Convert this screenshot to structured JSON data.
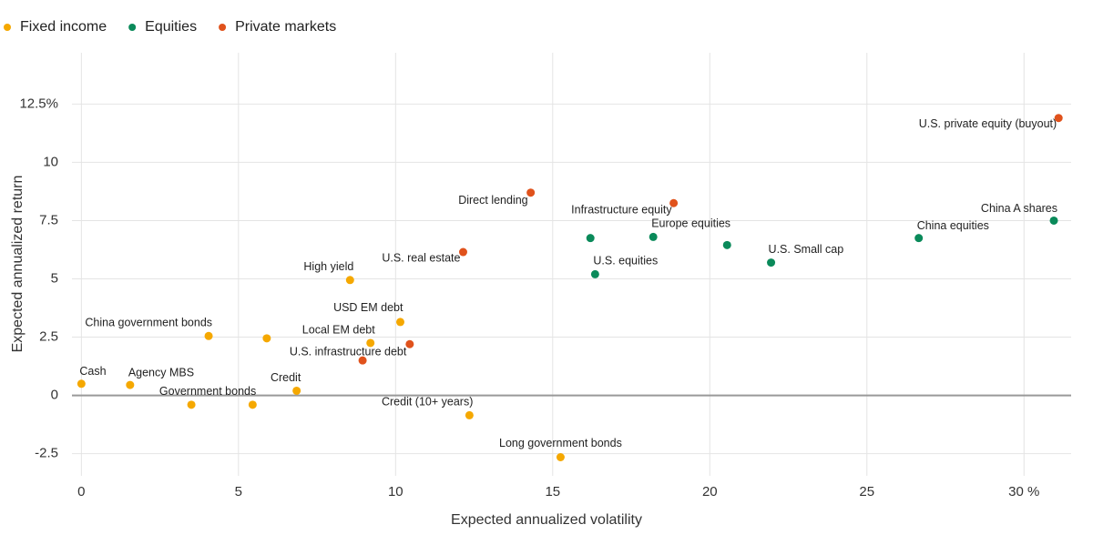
{
  "chart_data": {
    "type": "scatter",
    "x_label": "Expected annualized volatility",
    "y_label": "Expected annualized return",
    "xlim": [
      -0.3,
      31.5
    ],
    "ylim": [
      -3.45,
      14.7
    ],
    "xticks": [
      0,
      5,
      10,
      15,
      20,
      25,
      {
        "value": 30,
        "label": "30 %"
      }
    ],
    "yticks": [
      -2.5,
      0,
      2.5,
      5,
      7.5,
      10,
      {
        "value": 12.5,
        "label": "12.5%"
      }
    ],
    "grid": true,
    "legend": "top-left",
    "series": [
      {
        "name": "Fixed income",
        "color": "#f5a800",
        "x": [
          0,
          1.55,
          3.5,
          5.45,
          4.05,
          5.9,
          6.85,
          8.55,
          9.2,
          10.15,
          12.35,
          15.25
        ],
        "values": [
          0.5,
          0.45,
          -0.4,
          -0.4,
          2.55,
          2.45,
          0.2,
          4.95,
          2.25,
          3.15,
          -0.85,
          -2.65
        ],
        "labels": [
          "Cash",
          "Agency MBS",
          "Government bonds",
          null,
          "China government bonds",
          null,
          "Credit",
          "High yield",
          "Local EM debt",
          "USD EM debt",
          "Credit (10+ years)",
          "Long government bonds"
        ]
      },
      {
        "name": "Equities",
        "color": "#0a8a5a",
        "x": [
          16.2,
          16.35,
          18.2,
          20.55,
          21.95,
          26.65,
          30.95
        ],
        "values": [
          6.75,
          5.2,
          6.8,
          6.45,
          5.7,
          6.75,
          7.5
        ],
        "labels": [
          null,
          "U.S. equities",
          "Europe equities",
          null,
          "U.S. Small cap",
          "China equities",
          "China A shares"
        ]
      },
      {
        "name": "Private markets",
        "color": "#e0521c",
        "x": [
          8.95,
          10.45,
          12.15,
          14.3,
          18.85,
          31.1
        ],
        "values": [
          1.5,
          2.2,
          6.15,
          8.7,
          8.25,
          11.9
        ],
        "labels": [
          "U.S. infrastructure debt",
          null,
          "U.S. real estate",
          "Direct lending",
          "Infrastructure equity",
          "U.S. private equity (buyout)"
        ]
      }
    ]
  }
}
